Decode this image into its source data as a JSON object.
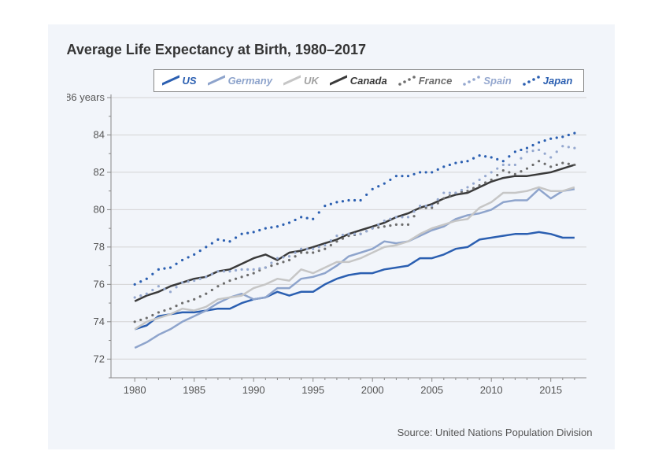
{
  "chart": {
    "type": "line",
    "title": "Average Life Expectancy at Birth, 1980–2017",
    "title_fontsize": 18,
    "title_color": "#353535",
    "background_color": "#f2f5fa",
    "plot_background": "#f2f5fa",
    "grid_color": "#d4d4d4",
    "axis_color": "#888888",
    "tick_label_color": "#555555",
    "tick_fontsize": 13,
    "xlim": [
      1978,
      2018
    ],
    "ylim": [
      71,
      86
    ],
    "x_ticks": [
      1980,
      1985,
      1990,
      1995,
      2000,
      2005,
      2010,
      2015
    ],
    "y_ticks": [
      72,
      74,
      76,
      78,
      80,
      82,
      84,
      86
    ],
    "y_minor_ticks": [
      71,
      73,
      75,
      77,
      79,
      81,
      83,
      85
    ],
    "y_unit_label": "86 years",
    "legend_position": "top-center",
    "legend_bg": "#ffffff",
    "legend_border": "#888888",
    "line_width": 2.5,
    "dot_radius": 1.6,
    "years": [
      1980,
      1981,
      1982,
      1983,
      1984,
      1985,
      1986,
      1987,
      1988,
      1989,
      1990,
      1991,
      1992,
      1993,
      1994,
      1995,
      1996,
      1997,
      1998,
      1999,
      2000,
      2001,
      2002,
      2003,
      2004,
      2005,
      2006,
      2007,
      2008,
      2009,
      2010,
      2011,
      2012,
      2013,
      2014,
      2015,
      2016,
      2017
    ],
    "series": [
      {
        "name": "US",
        "label": "US",
        "color": "#2b5fb1",
        "label_color": "#2b5fb1",
        "style": "solid",
        "values": [
          73.6,
          73.8,
          74.3,
          74.4,
          74.5,
          74.5,
          74.6,
          74.7,
          74.7,
          75.0,
          75.2,
          75.3,
          75.6,
          75.4,
          75.6,
          75.6,
          76.0,
          76.3,
          76.5,
          76.6,
          76.6,
          76.8,
          76.9,
          77.0,
          77.4,
          77.4,
          77.6,
          77.9,
          78.0,
          78.4,
          78.5,
          78.6,
          78.7,
          78.7,
          78.8,
          78.7,
          78.5,
          78.5
        ]
      },
      {
        "name": "Germany",
        "label": "Germany",
        "color": "#8ea4cc",
        "label_color": "#8ea4cc",
        "style": "solid",
        "values": [
          72.6,
          72.9,
          73.3,
          73.6,
          74.0,
          74.3,
          74.6,
          75.0,
          75.3,
          75.5,
          75.2,
          75.3,
          75.8,
          75.8,
          76.3,
          76.4,
          76.6,
          77.0,
          77.5,
          77.7,
          77.9,
          78.3,
          78.2,
          78.3,
          78.6,
          78.9,
          79.1,
          79.5,
          79.7,
          79.8,
          80.0,
          80.4,
          80.5,
          80.5,
          81.1,
          80.6,
          81.0,
          81.1
        ]
      },
      {
        "name": "UK",
        "label": "UK",
        "color": "#c6c6c6",
        "label_color": "#a1a1a1",
        "style": "solid",
        "values": [
          73.6,
          74.0,
          74.2,
          74.4,
          74.7,
          74.6,
          74.8,
          75.2,
          75.3,
          75.4,
          75.8,
          76.0,
          76.3,
          76.2,
          76.8,
          76.6,
          76.9,
          77.2,
          77.2,
          77.4,
          77.7,
          78.0,
          78.1,
          78.3,
          78.7,
          79.0,
          79.2,
          79.4,
          79.5,
          80.1,
          80.4,
          80.9,
          80.9,
          81.0,
          81.2,
          81.0,
          81.0,
          81.2
        ]
      },
      {
        "name": "Canada",
        "label": "Canada",
        "color": "#3a3a3a",
        "label_color": "#3a3a3a",
        "style": "solid",
        "values": [
          75.1,
          75.4,
          75.6,
          75.9,
          76.1,
          76.3,
          76.4,
          76.7,
          76.8,
          77.1,
          77.4,
          77.6,
          77.3,
          77.7,
          77.8,
          78.0,
          78.2,
          78.4,
          78.7,
          78.9,
          79.1,
          79.3,
          79.6,
          79.8,
          80.1,
          80.3,
          80.6,
          80.8,
          80.9,
          81.2,
          81.5,
          81.7,
          81.8,
          81.8,
          81.9,
          82.0,
          82.2,
          82.4
        ]
      },
      {
        "name": "France",
        "label": "France",
        "color": "#6d6d6d",
        "label_color": "#6d6d6d",
        "style": "dotted",
        "values": [
          74.0,
          74.2,
          74.5,
          74.7,
          75.0,
          75.2,
          75.5,
          75.9,
          76.2,
          76.4,
          76.6,
          76.9,
          77.1,
          77.3,
          77.7,
          77.7,
          77.9,
          78.3,
          78.6,
          78.7,
          79.0,
          79.1,
          79.2,
          79.2,
          80.1,
          80.1,
          80.6,
          80.9,
          81.0,
          81.3,
          81.6,
          82.1,
          81.9,
          82.2,
          82.6,
          82.3,
          82.5,
          82.4
        ]
      },
      {
        "name": "Spain",
        "label": "Spain",
        "color": "#95a8cf",
        "label_color": "#95a8cf",
        "style": "dotted",
        "values": [
          75.3,
          75.5,
          75.9,
          75.6,
          76.1,
          76.2,
          76.4,
          76.7,
          76.7,
          76.8,
          76.8,
          76.9,
          77.4,
          77.5,
          77.9,
          77.9,
          78.1,
          78.6,
          78.7,
          78.7,
          79.0,
          79.4,
          79.6,
          79.6,
          80.2,
          80.2,
          80.9,
          80.9,
          81.2,
          81.6,
          82.0,
          82.4,
          82.4,
          83.1,
          83.2,
          82.8,
          83.4,
          83.3
        ]
      },
      {
        "name": "Japan",
        "label": "Japan",
        "color": "#2b5fb1",
        "label_color": "#2b5fb1",
        "style": "dotted",
        "values": [
          76.0,
          76.3,
          76.8,
          76.9,
          77.3,
          77.6,
          78.0,
          78.4,
          78.3,
          78.7,
          78.8,
          79.0,
          79.1,
          79.3,
          79.6,
          79.5,
          80.2,
          80.4,
          80.5,
          80.5,
          81.1,
          81.4,
          81.8,
          81.8,
          82.0,
          82.0,
          82.3,
          82.5,
          82.6,
          82.9,
          82.8,
          82.6,
          83.1,
          83.3,
          83.6,
          83.8,
          83.9,
          84.1
        ]
      }
    ],
    "source_text": "Source: United Nations Population Division",
    "source_color": "#555555",
    "source_fontsize": 13
  }
}
